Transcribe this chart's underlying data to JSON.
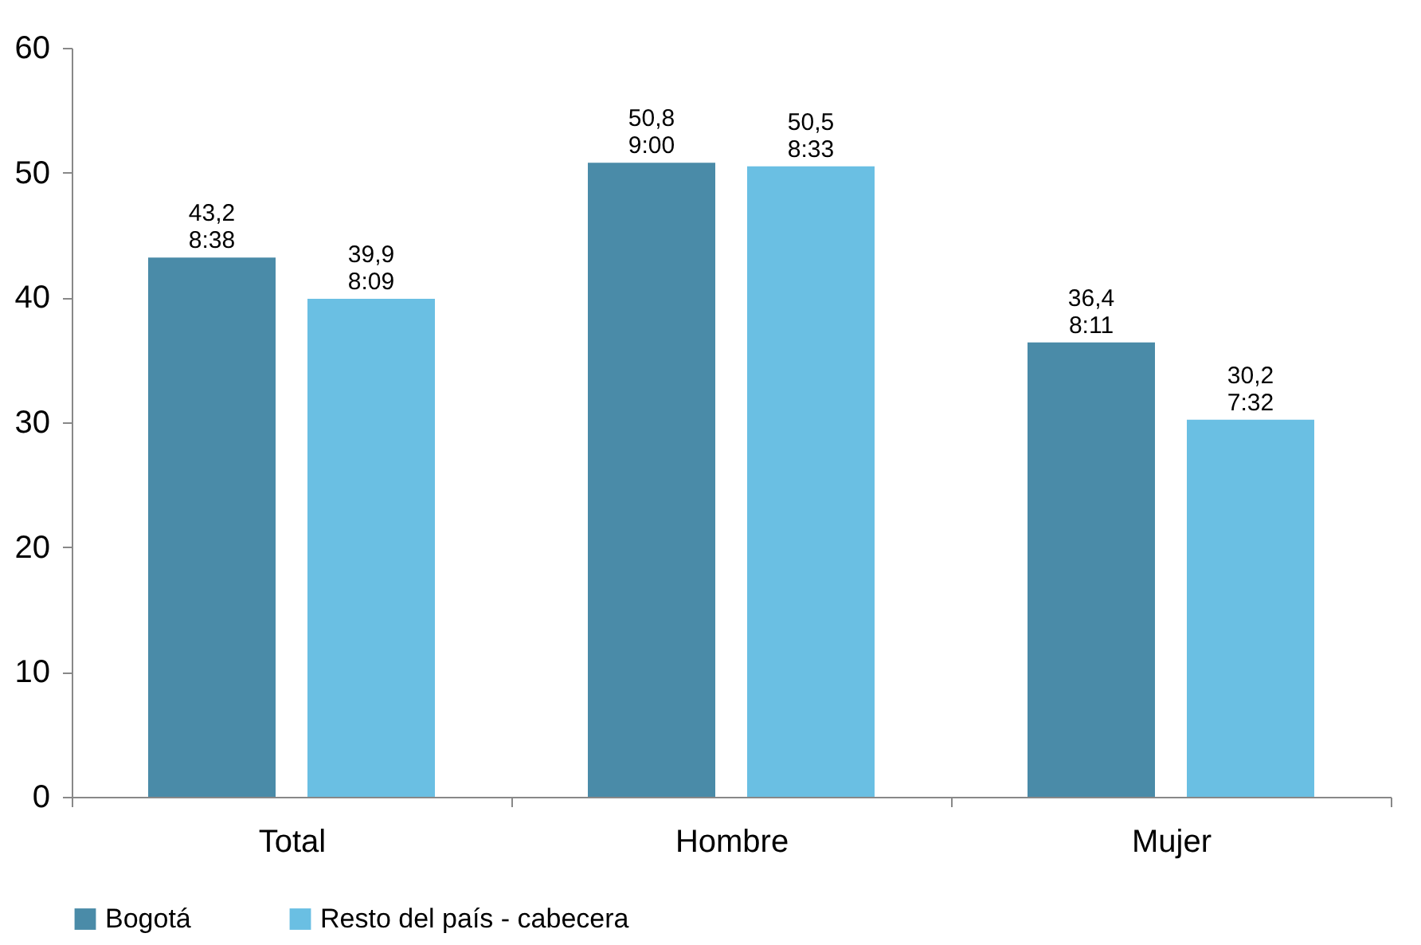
{
  "chart_data": {
    "type": "bar",
    "categories": [
      "Total",
      "Hombre",
      "Mujer"
    ],
    "series": [
      {
        "name": "Bogotá",
        "color": "#4a8ba8",
        "values": [
          43.2,
          50.8,
          36.4
        ],
        "value_labels": [
          "43,2\n8:38",
          "50,8\n9:00",
          "36,4\n8:11"
        ]
      },
      {
        "name": "Resto del país - cabecera",
        "color": "#6abfe3",
        "values": [
          39.9,
          50.5,
          30.2
        ],
        "value_labels": [
          "39,9\n8:09",
          "50,5\n8:33",
          "30,2\n7:32"
        ]
      }
    ],
    "ylim": [
      0,
      60
    ],
    "yticks": [
      0,
      10,
      20,
      30,
      40,
      50,
      60
    ],
    "grid": false,
    "legend": "bottom"
  }
}
